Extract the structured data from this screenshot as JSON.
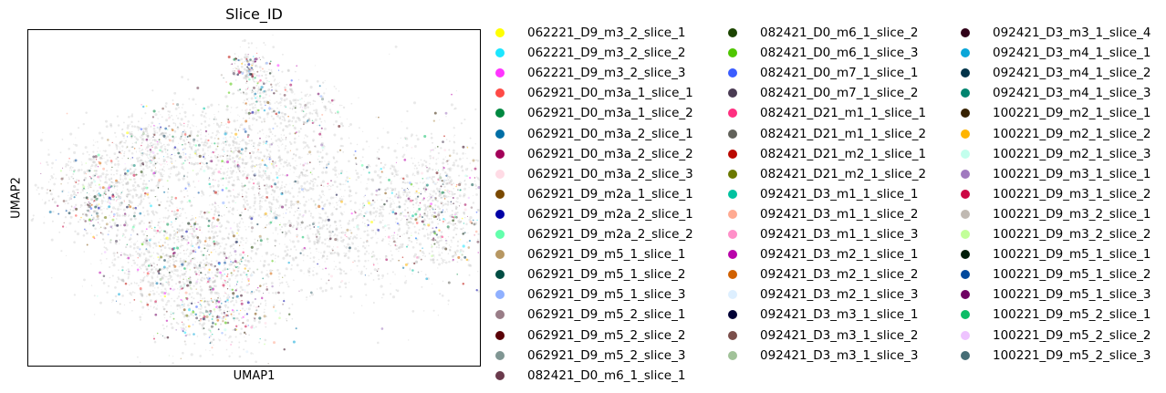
{
  "chart_data": {
    "type": "scatter",
    "title": "Slice_ID",
    "xlabel": "UMAP1",
    "ylabel": "UMAP2",
    "xticks": [],
    "yticks": [],
    "grid": false,
    "legend_placement": "right, outside plot, 3 columns",
    "series": [
      {
        "name": "062221_D9_m3_2_slice_1",
        "color": "#ffff00"
      },
      {
        "name": "062221_D9_m3_2_slice_2",
        "color": "#1ce6ff"
      },
      {
        "name": "062221_D9_m3_2_slice_3",
        "color": "#ff34ff"
      },
      {
        "name": "062921_D0_m3a_1_slice_1",
        "color": "#ff4a46"
      },
      {
        "name": "062921_D0_m3a_1_slice_2",
        "color": "#008941"
      },
      {
        "name": "062921_D0_m3a_2_slice_1",
        "color": "#006fa6"
      },
      {
        "name": "062921_D0_m3a_2_slice_2",
        "color": "#a30059"
      },
      {
        "name": "062921_D0_m3a_2_slice_3",
        "color": "#ffdbe5"
      },
      {
        "name": "062921_D9_m2a_1_slice_1",
        "color": "#7a4900"
      },
      {
        "name": "062921_D9_m2a_2_slice_1",
        "color": "#0000a6"
      },
      {
        "name": "062921_D9_m2a_2_slice_2",
        "color": "#63ffac"
      },
      {
        "name": "062921_D9_m5_1_slice_1",
        "color": "#b79762"
      },
      {
        "name": "062921_D9_m5_1_slice_2",
        "color": "#004d43"
      },
      {
        "name": "062921_D9_m5_1_slice_3",
        "color": "#8fb0ff"
      },
      {
        "name": "062921_D9_m5_2_slice_1",
        "color": "#997d87"
      },
      {
        "name": "062921_D9_m5_2_slice_2",
        "color": "#5a0007"
      },
      {
        "name": "062921_D9_m5_2_slice_3",
        "color": "#809693"
      },
      {
        "name": "082421_D0_m6_1_slice_1",
        "color": "#6a3a4c"
      },
      {
        "name": "082421_D0_m6_1_slice_2",
        "color": "#1b4400"
      },
      {
        "name": "082421_D0_m6_1_slice_3",
        "color": "#4fc601"
      },
      {
        "name": "082421_D0_m7_1_slice_1",
        "color": "#3b5dff"
      },
      {
        "name": "082421_D0_m7_1_slice_2",
        "color": "#4a3b53"
      },
      {
        "name": "082421_D21_m1_1_slice_1",
        "color": "#ff2f80"
      },
      {
        "name": "082421_D21_m1_1_slice_2",
        "color": "#61615a"
      },
      {
        "name": "082421_D21_m2_1_slice_1",
        "color": "#ba0900"
      },
      {
        "name": "082421_D21_m2_1_slice_2",
        "color": "#6b7900"
      },
      {
        "name": "092421_D3_m1_1_slice_1",
        "color": "#00c2a0"
      },
      {
        "name": "092421_D3_m1_1_slice_2",
        "color": "#ffaa92"
      },
      {
        "name": "092421_D3_m1_1_slice_3",
        "color": "#ff90c9"
      },
      {
        "name": "092421_D3_m2_1_slice_1",
        "color": "#b903aa"
      },
      {
        "name": "092421_D3_m2_1_slice_2",
        "color": "#d16100"
      },
      {
        "name": "092421_D3_m2_1_slice_3",
        "color": "#ddefff"
      },
      {
        "name": "092421_D3_m3_1_slice_1",
        "color": "#000035"
      },
      {
        "name": "092421_D3_m3_1_slice_2",
        "color": "#7b4f4b"
      },
      {
        "name": "092421_D3_m3_1_slice_3",
        "color": "#a1c299"
      },
      {
        "name": "092421_D3_m3_1_slice_4",
        "color": "#300018"
      },
      {
        "name": "092421_D3_m4_1_slice_1",
        "color": "#0aa6d8"
      },
      {
        "name": "092421_D3_m4_1_slice_2",
        "color": "#013349"
      },
      {
        "name": "092421_D3_m4_1_slice_3",
        "color": "#00846f"
      },
      {
        "name": "100221_D9_m2_1_slice_1",
        "color": "#372101"
      },
      {
        "name": "100221_D9_m2_1_slice_2",
        "color": "#ffb500"
      },
      {
        "name": "100221_D9_m2_1_slice_3",
        "color": "#c2ffed"
      },
      {
        "name": "100221_D9_m3_1_slice_1",
        "color": "#a079bf"
      },
      {
        "name": "100221_D9_m3_1_slice_2",
        "color": "#cc0744"
      },
      {
        "name": "100221_D9_m3_2_slice_1",
        "color": "#c0b9b2"
      },
      {
        "name": "100221_D9_m3_2_slice_2",
        "color": "#c2ff99"
      },
      {
        "name": "100221_D9_m5_1_slice_1",
        "color": "#001e09"
      },
      {
        "name": "100221_D9_m5_1_slice_2",
        "color": "#00489c"
      },
      {
        "name": "100221_D9_m5_1_slice_3",
        "color": "#6f0062"
      },
      {
        "name": "100221_D9_m5_2_slice_1",
        "color": "#0cbd66"
      },
      {
        "name": "100221_D9_m5_2_slice_2",
        "color": "#eec3ff"
      },
      {
        "name": "100221_D9_m5_2_slice_3",
        "color": "#456d75"
      }
    ]
  }
}
